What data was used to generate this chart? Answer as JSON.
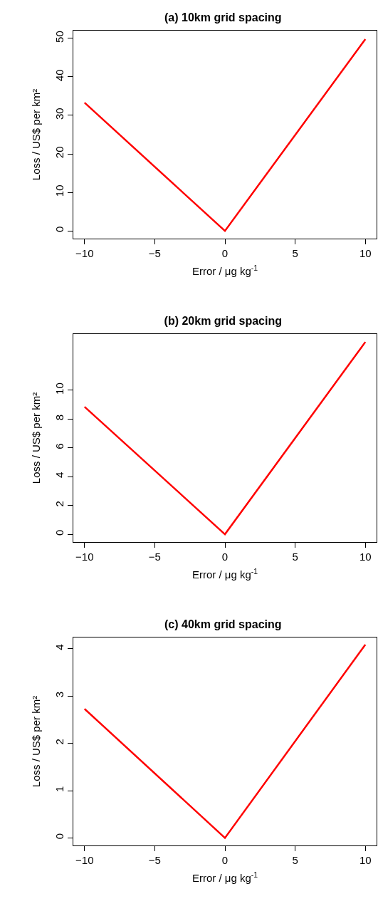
{
  "chart_data": [
    {
      "type": "line",
      "title": "(a) 10km grid spacing",
      "xlabel": "Error / μg kg$^{-1}$",
      "ylabel": "Loss / US$ per km²",
      "x": [
        -10,
        0,
        10
      ],
      "series": [
        {
          "color": "#ff0000",
          "values": [
            33.3,
            0,
            49.8
          ]
        }
      ],
      "xlim": [
        -10.8,
        10.8
      ],
      "ylim": [
        -2,
        52
      ],
      "xticks": [
        -10,
        -5,
        0,
        5,
        10
      ],
      "yticks": [
        0,
        10,
        20,
        30,
        40,
        50
      ]
    },
    {
      "type": "line",
      "title": "(b) 20km grid spacing",
      "xlabel": "Error / μg kg$^{-1}$",
      "ylabel": "Loss / US$ per km²",
      "x": [
        -10,
        0,
        10
      ],
      "series": [
        {
          "color": "#ff0000",
          "values": [
            8.85,
            0,
            13.35
          ]
        }
      ],
      "xlim": [
        -10.8,
        10.8
      ],
      "ylim": [
        -0.54,
        13.9
      ],
      "xticks": [
        -10,
        -5,
        0,
        5,
        10
      ],
      "yticks": [
        0,
        2,
        4,
        6,
        8,
        10
      ]
    },
    {
      "type": "line",
      "title": "(c) 40km grid spacing",
      "xlabel": "Error / μg kg$^{-1}$",
      "ylabel": "Loss / US$ per km²",
      "x": [
        -10,
        0,
        10
      ],
      "series": [
        {
          "color": "#ff0000",
          "values": [
            2.73,
            0,
            4.09
          ]
        }
      ],
      "xlim": [
        -10.8,
        10.8
      ],
      "ylim": [
        -0.16,
        4.24
      ],
      "xticks": [
        -10,
        -5,
        0,
        5,
        10
      ],
      "yticks": [
        0,
        1,
        2,
        3,
        4
      ]
    }
  ]
}
